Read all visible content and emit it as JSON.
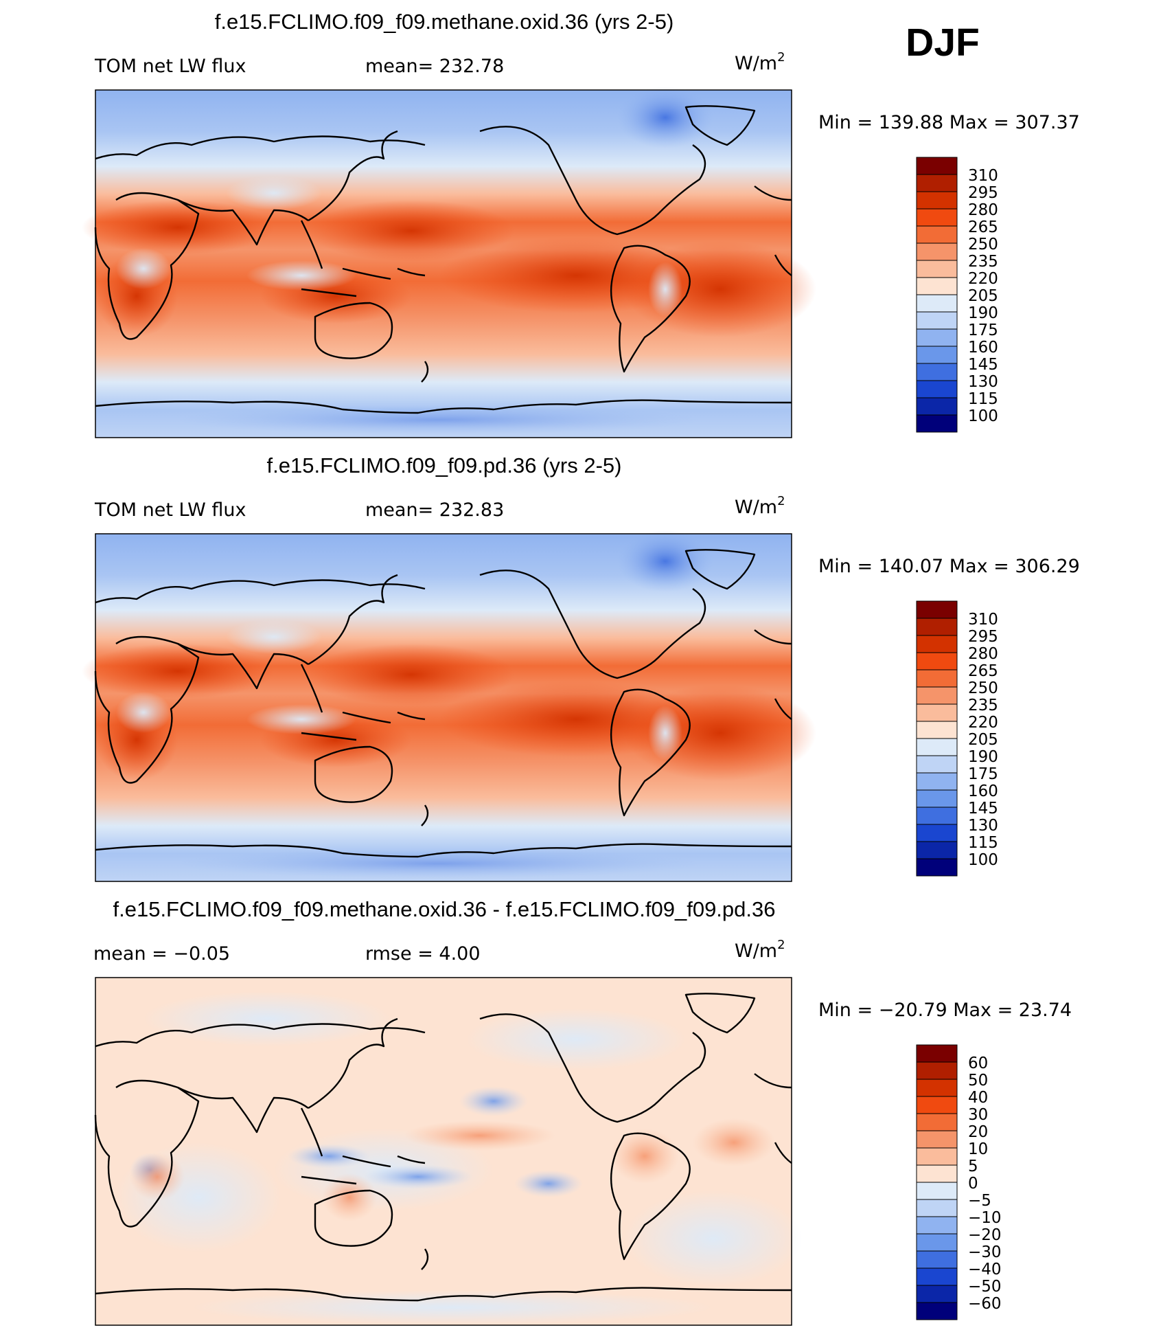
{
  "season": "DJF",
  "units_base": "W/m",
  "units_exp": "2",
  "panels": [
    {
      "id": "methane",
      "title": "f.e15.FCLIMO.f09_f09.methane.oxid.36 (yrs 2-5)",
      "left_label": "TOM net LW flux",
      "mid_label": "mean= 232.78",
      "minmax": "Min  =  139.88  Max  =  307.37",
      "type": "field"
    },
    {
      "id": "pd",
      "title": "f.e15.FCLIMO.f09_f09.pd.36 (yrs 2-5)",
      "left_label": "TOM net LW flux",
      "mid_label": "mean= 232.83",
      "minmax": "Min  =  140.07  Max  =  306.29",
      "type": "field"
    },
    {
      "id": "diff",
      "title": "f.e15.FCLIMO.f09_f09.methane.oxid.36 - f.e15.FCLIMO.f09_f09.pd.36",
      "left_label": "mean  =   −0.05",
      "mid_label": "rmse  =     4.00",
      "minmax": "Min  =  −20.79  Max  =   23.74",
      "type": "diff"
    }
  ],
  "chart_data": [
    {
      "type": "heatmap",
      "title": "f.e15.FCLIMO.f09_f09.methane.oxid.36 (yrs 2-5)",
      "variable": "TOM net LW flux",
      "units": "W/m2",
      "mean": 232.78,
      "min": 139.88,
      "max": 307.37,
      "colorbar_levels": [
        310,
        295,
        280,
        265,
        250,
        235,
        220,
        205,
        190,
        175,
        160,
        145,
        130,
        115,
        100
      ],
      "colorbar_colors": [
        "#7a0000",
        "#b01f00",
        "#d33200",
        "#f04a10",
        "#f26c36",
        "#f5946a",
        "#fabc9c",
        "#fde3d2",
        "#ddeaf8",
        "#bfd4f5",
        "#90b3f0",
        "#6a97ea",
        "#3f6fe0",
        "#1a46d0",
        "#0b26a8",
        "#00007a"
      ]
    },
    {
      "type": "heatmap",
      "title": "f.e15.FCLIMO.f09_f09.pd.36 (yrs 2-5)",
      "variable": "TOM net LW flux",
      "units": "W/m2",
      "mean": 232.83,
      "min": 140.07,
      "max": 306.29,
      "colorbar_levels": [
        310,
        295,
        280,
        265,
        250,
        235,
        220,
        205,
        190,
        175,
        160,
        145,
        130,
        115,
        100
      ],
      "colorbar_colors": [
        "#7a0000",
        "#b01f00",
        "#d33200",
        "#f04a10",
        "#f26c36",
        "#f5946a",
        "#fabc9c",
        "#fde3d2",
        "#ddeaf8",
        "#bfd4f5",
        "#90b3f0",
        "#6a97ea",
        "#3f6fe0",
        "#1a46d0",
        "#0b26a8",
        "#00007a"
      ]
    },
    {
      "type": "heatmap",
      "title": "f.e15.FCLIMO.f09_f09.methane.oxid.36 - f.e15.FCLIMO.f09_f09.pd.36",
      "units": "W/m2",
      "mean": -0.05,
      "rmse": 4.0,
      "min": -20.79,
      "max": 23.74,
      "colorbar_levels": [
        "60",
        "50",
        "40",
        "30",
        "20",
        "10",
        "5",
        "0",
        "−5",
        "−10",
        "−20",
        "−30",
        "−40",
        "−50",
        "−60"
      ],
      "colorbar_colors": [
        "#7a0000",
        "#b01f00",
        "#d33200",
        "#f04a10",
        "#f26c36",
        "#f5946a",
        "#fabc9c",
        "#fde3d2",
        "#ddeaf8",
        "#bfd4f5",
        "#90b3f0",
        "#6a97ea",
        "#3f6fe0",
        "#1a46d0",
        "#0b26a8",
        "#00007a"
      ]
    }
  ]
}
